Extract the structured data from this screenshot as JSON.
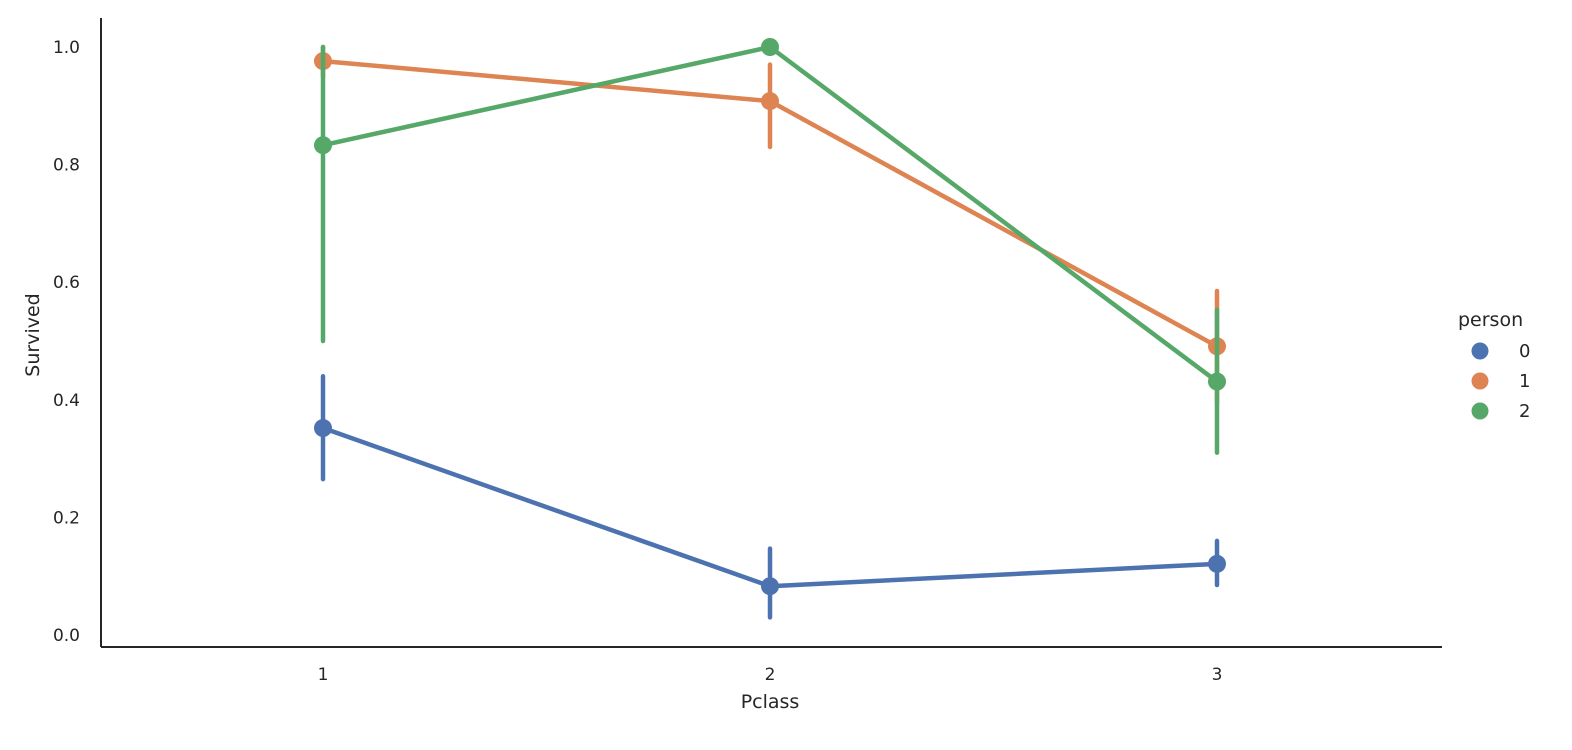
{
  "chart_data": {
    "type": "line",
    "xlabel": "Pclass",
    "ylabel": "Survived",
    "categories": [
      "1",
      "2",
      "3"
    ],
    "yticks": [
      "0.0",
      "0.2",
      "0.4",
      "0.6",
      "0.8",
      "1.0"
    ],
    "ylim": [
      0.0,
      1.05
    ],
    "grid": false,
    "legend": {
      "title": "person",
      "placement": "right"
    },
    "series": [
      {
        "name": "0",
        "color": "#4c72b0",
        "values": [
          0.352,
          0.083,
          0.121
        ],
        "ci": [
          [
            0.265,
            0.44
          ],
          [
            0.03,
            0.147
          ],
          [
            0.085,
            0.16
          ]
        ]
      },
      {
        "name": "1",
        "color": "#dd8452",
        "values": [
          0.976,
          0.908,
          0.491
        ],
        "ci": [
          [
            0.95,
            1.0
          ],
          [
            0.83,
            0.97
          ],
          [
            0.395,
            0.585
          ]
        ]
      },
      {
        "name": "2",
        "color": "#55a868",
        "values": [
          0.833,
          1.0,
          0.431
        ],
        "ci": [
          [
            0.5,
            1.0
          ],
          [
            1.0,
            1.0
          ],
          [
            0.31,
            0.553
          ]
        ]
      }
    ]
  }
}
